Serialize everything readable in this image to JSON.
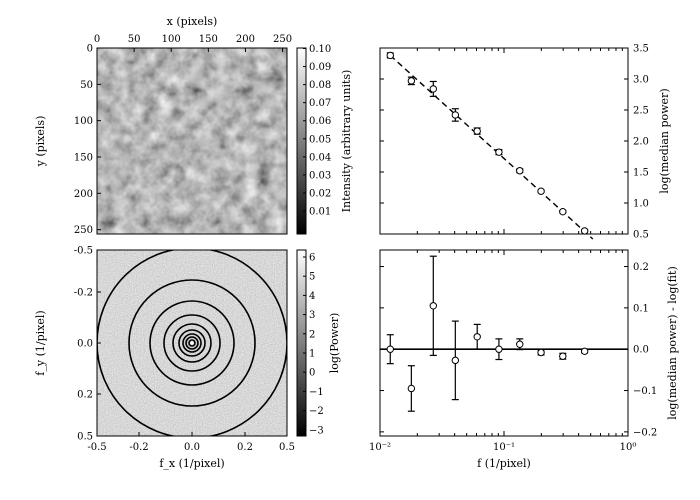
{
  "panels": {
    "image": {
      "xlabel": "x (pixels)",
      "ylabel": "y (pixels)",
      "xticks": [
        "0",
        "50",
        "100",
        "150",
        "200",
        "250"
      ],
      "yticks": [
        "0",
        "50",
        "100",
        "150",
        "200",
        "250"
      ],
      "colorbar_label": "Intensity (arbitrary units)",
      "colorbar_ticks": [
        "0.10",
        "0.09",
        "0.08",
        "0.07",
        "0.06",
        "0.05",
        "0.04",
        "0.03",
        "0.02",
        "0.01"
      ]
    },
    "power": {
      "xlabel": "f_x (1/pixel)",
      "ylabel": "f_y (1/pixel)",
      "xticks": [
        "-0.5",
        "-0.2",
        "0.0",
        "0.2",
        "0.5"
      ],
      "yticks": [
        "-0.5",
        "-0.2",
        "0.0",
        "0.2",
        "0.5"
      ],
      "colorbar_label": "log(Power)",
      "colorbar_ticks": [
        "6",
        "5",
        "4",
        "3",
        "2",
        "1",
        "0",
        "−1",
        "−2",
        "−3"
      ]
    }
  },
  "chart_data": [
    {
      "type": "scatter",
      "panel": "top-right",
      "xlabel": "",
      "ylabel": "log(median power)",
      "x_scale": "log",
      "xlim": [
        0.01,
        1
      ],
      "ylim": [
        0.5,
        3.5
      ],
      "yticks": [
        "0.5",
        "1.0",
        "1.5",
        "2.0",
        "2.5",
        "3.0",
        "3.5"
      ],
      "y_axis_side": "right",
      "points": [
        {
          "x": 0.0121,
          "y": 3.38,
          "err": 0.04
        },
        {
          "x": 0.0179,
          "y": 2.97,
          "err": 0.06
        },
        {
          "x": 0.0269,
          "y": 2.84,
          "err": 0.12
        },
        {
          "x": 0.0405,
          "y": 2.42,
          "err": 0.1
        },
        {
          "x": 0.0608,
          "y": 2.16,
          "err": 0.05
        },
        {
          "x": 0.091,
          "y": 1.82,
          "err": 0.04
        },
        {
          "x": 0.134,
          "y": 1.52,
          "err": 0.03
        },
        {
          "x": 0.199,
          "y": 1.19,
          "err": 0.02
        },
        {
          "x": 0.298,
          "y": 0.86,
          "err": 0.02
        },
        {
          "x": 0.447,
          "y": 0.55,
          "err": 0.01
        }
      ],
      "fit_line": {
        "x": [
          0.0121,
          0.52
        ],
        "y": [
          3.38,
          0.42
        ],
        "style": "dashed"
      }
    },
    {
      "type": "scatter",
      "panel": "bottom-right",
      "xlabel": "f (1/pixel)",
      "ylabel": "log(median power) - log(fit)",
      "x_scale": "log",
      "xlim": [
        0.01,
        1
      ],
      "ylim": [
        -0.21,
        0.24
      ],
      "xticks": [
        "10⁻²",
        "10⁻¹",
        "10⁰"
      ],
      "yticks": [
        "−0.2",
        "−0.1",
        "0.0",
        "0.1",
        "0.2"
      ],
      "y_axis_side": "right",
      "zero_line": 0,
      "points": [
        {
          "x": 0.0121,
          "y": 0.0,
          "err": 0.035
        },
        {
          "x": 0.0179,
          "y": -0.095,
          "err": 0.055
        },
        {
          "x": 0.0269,
          "y": 0.105,
          "err": 0.12
        },
        {
          "x": 0.0405,
          "y": -0.027,
          "err": 0.095
        },
        {
          "x": 0.0608,
          "y": 0.03,
          "err": 0.03
        },
        {
          "x": 0.091,
          "y": 0.0,
          "err": 0.025
        },
        {
          "x": 0.134,
          "y": 0.012,
          "err": 0.013
        },
        {
          "x": 0.199,
          "y": -0.008,
          "err": 0.006
        },
        {
          "x": 0.298,
          "y": -0.017,
          "err": 0.007
        },
        {
          "x": 0.447,
          "y": -0.005,
          "err": 0.004
        }
      ]
    }
  ]
}
